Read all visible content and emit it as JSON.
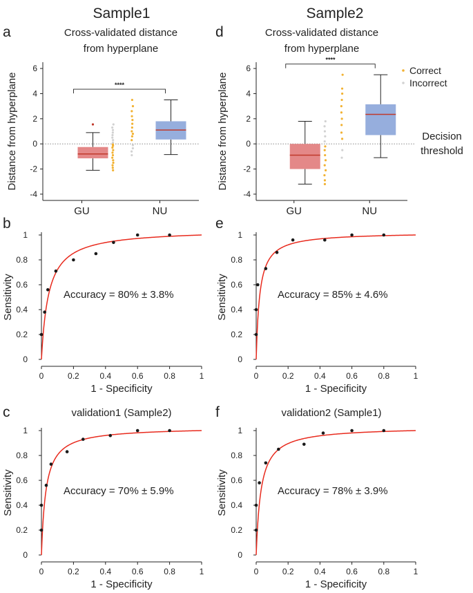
{
  "columns": [
    "Sample1",
    "Sample2"
  ],
  "legend": {
    "correct": "Correct",
    "incorrect": "Incorrect"
  },
  "threshold_label": [
    "Decision",
    "threshold"
  ],
  "colors": {
    "gu_box": "#e48888",
    "nu_box": "#96aedd",
    "median": "#c0392b",
    "correct": "#f2b233",
    "incorrect": "#d2d2d2",
    "roc_curve": "#e8291c",
    "point": "#1a1a1a"
  },
  "chart_data": [
    {
      "type": "box",
      "panel": "a",
      "title": [
        "Cross-validated distance",
        "from hyperplane"
      ],
      "ylabel": "Distance from hyperplane",
      "ylim": [
        -4.5,
        6.5
      ],
      "yticks": [
        -4,
        -2,
        0,
        2,
        4,
        6
      ],
      "categories": [
        "GU",
        "NU"
      ],
      "significance": "****",
      "boxes": [
        {
          "name": "GU",
          "whisker_low": -2.1,
          "q1": -1.15,
          "median": -0.8,
          "q3": -0.25,
          "whisker_high": 0.9,
          "outliers": [
            1.55
          ]
        },
        {
          "name": "NU",
          "whisker_low": -0.85,
          "q1": 0.35,
          "median": 1.1,
          "q3": 1.8,
          "whisker_high": 3.5,
          "outliers": []
        }
      ],
      "strip": [
        {
          "category": "GU",
          "correct": [
            -2.1,
            -1.9,
            -1.7,
            -1.5,
            -1.3,
            -1.1,
            -0.9,
            -0.7,
            -0.5,
            -0.3,
            -0.15,
            -0.05
          ],
          "incorrect": [
            0.1,
            0.3,
            0.5,
            0.7,
            0.9,
            1.1,
            1.3,
            1.55
          ]
        },
        {
          "category": "NU",
          "correct": [
            0.3,
            0.6,
            0.8,
            1.0,
            1.3,
            1.6,
            1.9,
            2.2,
            2.6,
            3.0,
            3.5
          ],
          "incorrect": [
            -0.9,
            -0.6,
            -0.35,
            -0.1
          ]
        }
      ]
    },
    {
      "type": "box",
      "panel": "d",
      "title": [
        "Cross-validated distance",
        "from hyperplane"
      ],
      "ylabel": "Distance from hyperplane",
      "ylim": [
        -4.5,
        6.5
      ],
      "yticks": [
        -4,
        -2,
        0,
        2,
        4,
        6
      ],
      "categories": [
        "GU",
        "NU"
      ],
      "significance": "****",
      "boxes": [
        {
          "name": "GU",
          "whisker_low": -3.2,
          "q1": -2.0,
          "median": -0.9,
          "q3": 0.0,
          "whisker_high": 1.8,
          "outliers": []
        },
        {
          "name": "NU",
          "whisker_low": -1.1,
          "q1": 0.7,
          "median": 2.35,
          "q3": 3.15,
          "whisker_high": 5.5,
          "outliers": []
        }
      ],
      "strip": [
        {
          "category": "GU",
          "correct": [
            -3.2,
            -2.9,
            -2.5,
            -2.1,
            -1.7,
            -1.3,
            -0.9,
            -0.5,
            -0.2
          ],
          "incorrect": [
            0.2,
            0.6,
            1.0,
            1.4,
            1.8
          ]
        },
        {
          "category": "NU",
          "correct": [
            0.4,
            0.9,
            1.5,
            2.0,
            2.5,
            3.0,
            3.5,
            4.0,
            4.4,
            5.5
          ],
          "incorrect": [
            -1.1,
            -0.5
          ]
        }
      ]
    },
    {
      "type": "roc",
      "panel": "b",
      "xlabel": "1 - Specificity",
      "ylabel": "Sensitivity",
      "xlim": [
        0,
        1
      ],
      "ylim": [
        0,
        1
      ],
      "xticks": [
        0,
        0.2,
        0.4,
        0.6,
        0.8,
        1
      ],
      "yticks": [
        0,
        0.2,
        0.4,
        0.6,
        0.8,
        1
      ],
      "accuracy": "Accuracy = 80% ± 3.8%",
      "points": [
        [
          0.0,
          0.2
        ],
        [
          0.02,
          0.38
        ],
        [
          0.04,
          0.56
        ],
        [
          0.09,
          0.71
        ],
        [
          0.2,
          0.8
        ],
        [
          0.34,
          0.85
        ],
        [
          0.45,
          0.94
        ],
        [
          0.6,
          1.0
        ],
        [
          0.8,
          1.0
        ]
      ],
      "curve_k": 0.045
    },
    {
      "type": "roc",
      "panel": "e",
      "xlabel": "1 - Specificity",
      "ylabel": "Sensitivity",
      "xlim": [
        0,
        1
      ],
      "ylim": [
        0,
        1
      ],
      "xticks": [
        0,
        0.2,
        0.4,
        0.6,
        0.8,
        1
      ],
      "yticks": [
        0,
        0.2,
        0.4,
        0.6,
        0.8,
        1
      ],
      "accuracy": "Accuracy = 85% ± 4.6%",
      "points": [
        [
          0.0,
          0.2
        ],
        [
          0.0,
          0.4
        ],
        [
          0.01,
          0.6
        ],
        [
          0.06,
          0.73
        ],
        [
          0.13,
          0.86
        ],
        [
          0.23,
          0.96
        ],
        [
          0.43,
          0.96
        ],
        [
          0.6,
          1.0
        ],
        [
          0.8,
          1.0
        ]
      ],
      "curve_k": 0.022
    },
    {
      "type": "roc",
      "panel": "c",
      "title": "validation1 (Sample2)",
      "xlabel": "1 - Specificity",
      "ylabel": "Sensitivity",
      "xlim": [
        0,
        1
      ],
      "ylim": [
        0,
        1
      ],
      "xticks": [
        0,
        0.2,
        0.4,
        0.6,
        0.8,
        1
      ],
      "yticks": [
        0,
        0.2,
        0.4,
        0.6,
        0.8,
        1
      ],
      "accuracy": "Accuracy = 70% ± 5.9%",
      "points": [
        [
          0.0,
          0.2
        ],
        [
          0.0,
          0.4
        ],
        [
          0.03,
          0.56
        ],
        [
          0.06,
          0.73
        ],
        [
          0.16,
          0.83
        ],
        [
          0.26,
          0.93
        ],
        [
          0.43,
          0.96
        ],
        [
          0.6,
          1.0
        ],
        [
          0.8,
          1.0
        ]
      ],
      "curve_k": 0.028
    },
    {
      "type": "roc",
      "panel": "f",
      "title": "validation2 (Sample1)",
      "xlabel": "1 - Specificity",
      "ylabel": "Sensitivity",
      "xlim": [
        0,
        1
      ],
      "ylim": [
        0,
        1
      ],
      "xticks": [
        0,
        0.2,
        0.4,
        0.6,
        0.8,
        1
      ],
      "yticks": [
        0,
        0.2,
        0.4,
        0.6,
        0.8,
        1
      ],
      "accuracy": "Accuracy = 78% ± 3.9%",
      "points": [
        [
          0.0,
          0.2
        ],
        [
          0.0,
          0.4
        ],
        [
          0.02,
          0.58
        ],
        [
          0.06,
          0.74
        ],
        [
          0.14,
          0.85
        ],
        [
          0.3,
          0.89
        ],
        [
          0.42,
          0.98
        ],
        [
          0.6,
          1.0
        ],
        [
          0.8,
          1.0
        ]
      ],
      "curve_k": 0.03
    }
  ]
}
